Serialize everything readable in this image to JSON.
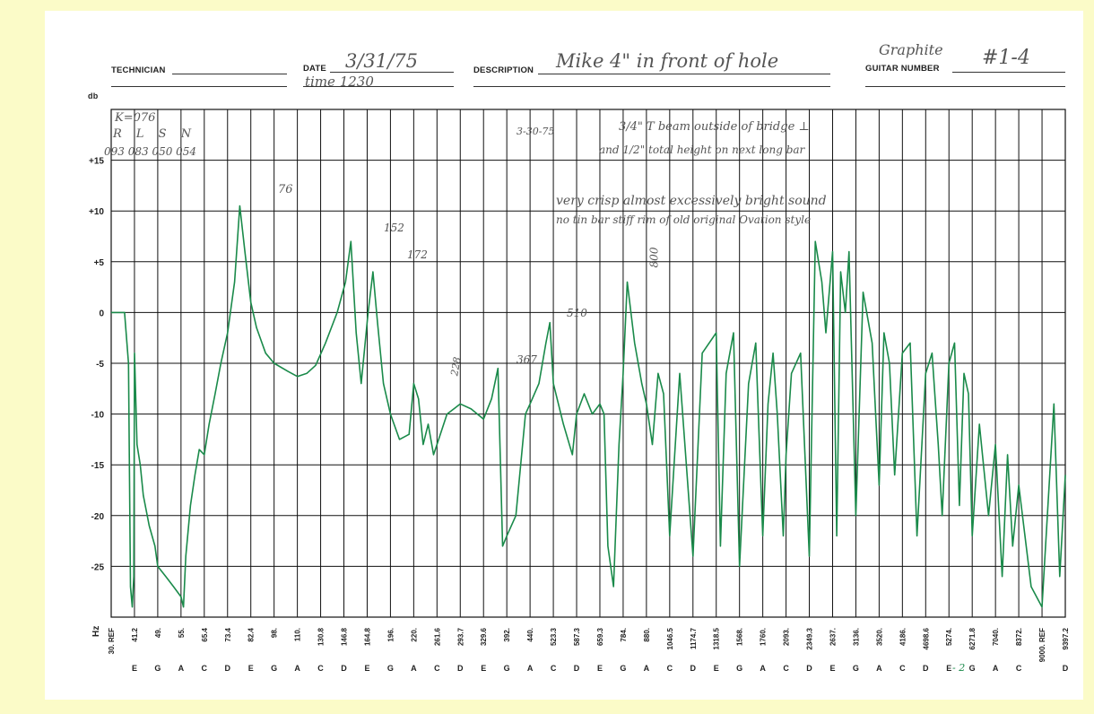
{
  "header": {
    "technician_label": "TECHNICIAN",
    "date_label": "DATE",
    "date_value": "3/31/75",
    "time_value": "time 1230",
    "description_label": "DESCRIPTION",
    "description_value": "Mike 4\" in front of hole",
    "guitar_number_label": "GUITAR NUMBER",
    "guitar_note": "Graphite",
    "guitar_number_value": "#1-4"
  },
  "notes": {
    "k_line": "K=076",
    "rlsn_headers": "R   L   S   N",
    "rlsn_values": "093  083  050  054",
    "date2": "3-30-75",
    "note1": "3/4\" T beam outside of bridge  ⊥",
    "note2": "and 1/2\" total height on next long bar",
    "note3": "very crisp almost excessively bright sound",
    "note4": "no tin bar     stiff rim of old original Ovation style",
    "peak_76": "76",
    "peak_152": "152",
    "peak_172": "172",
    "peak_228": "228",
    "peak_367": "367",
    "peak_510": "510",
    "peak_800": "800",
    "bottom_mark": "- 2"
  },
  "colors": {
    "trace": "#1a8a4a",
    "trace_dark": "#0e5e2e",
    "grid": "#111111",
    "paper": "#fbfbc8"
  },
  "chart_data": {
    "type": "line",
    "title": "",
    "xlabel": "Hz",
    "ylabel": "db",
    "ylim": [
      -30,
      20
    ],
    "y_ticks": [
      {
        "v": 15,
        "label": "+15"
      },
      {
        "v": 10,
        "label": "+10"
      },
      {
        "v": 5,
        "label": "+5"
      },
      {
        "v": 0,
        "label": "0"
      },
      {
        "v": -5,
        "label": "-5"
      },
      {
        "v": -10,
        "label": "-10"
      },
      {
        "v": -15,
        "label": "-15"
      },
      {
        "v": -20,
        "label": "-20"
      },
      {
        "v": -25,
        "label": "-25"
      }
    ],
    "x_ticks": [
      {
        "freq": "30. REF",
        "note": ""
      },
      {
        "freq": "41.2",
        "note": "E"
      },
      {
        "freq": "49.",
        "note": "G"
      },
      {
        "freq": "55.",
        "note": "A"
      },
      {
        "freq": "65.4",
        "note": "C"
      },
      {
        "freq": "73.4",
        "note": "D"
      },
      {
        "freq": "82.4",
        "note": "E"
      },
      {
        "freq": "98.",
        "note": "G"
      },
      {
        "freq": "110.",
        "note": "A"
      },
      {
        "freq": "130.8",
        "note": "C"
      },
      {
        "freq": "146.8",
        "note": "D"
      },
      {
        "freq": "164.8",
        "note": "E"
      },
      {
        "freq": "196.",
        "note": "G"
      },
      {
        "freq": "220.",
        "note": "A"
      },
      {
        "freq": "261.6",
        "note": "C"
      },
      {
        "freq": "293.7",
        "note": "D"
      },
      {
        "freq": "329.6",
        "note": "E"
      },
      {
        "freq": "392.",
        "note": "G"
      },
      {
        "freq": "440.",
        "note": "A"
      },
      {
        "freq": "523.3",
        "note": "C"
      },
      {
        "freq": "587.3",
        "note": "D"
      },
      {
        "freq": "659.3",
        "note": "E"
      },
      {
        "freq": "784.",
        "note": "G"
      },
      {
        "freq": "880.",
        "note": "A"
      },
      {
        "freq": "1046.5",
        "note": "C"
      },
      {
        "freq": "1174.7",
        "note": "D"
      },
      {
        "freq": "1318.5",
        "note": "E"
      },
      {
        "freq": "1568.",
        "note": "G"
      },
      {
        "freq": "1760.",
        "note": "A"
      },
      {
        "freq": "2093.",
        "note": "C"
      },
      {
        "freq": "2349.3",
        "note": "D"
      },
      {
        "freq": "2637.",
        "note": "E"
      },
      {
        "freq": "3136.",
        "note": "G"
      },
      {
        "freq": "3520.",
        "note": "A"
      },
      {
        "freq": "4186.",
        "note": "C"
      },
      {
        "freq": "4698.6",
        "note": "D"
      },
      {
        "freq": "5274.",
        "note": "E"
      },
      {
        "freq": "6271.8",
        "note": "G"
      },
      {
        "freq": "7040.",
        "note": "A"
      },
      {
        "freq": "8372.",
        "note": "C"
      },
      {
        "freq": "9000. REF",
        "note": ""
      },
      {
        "freq": "9397.2",
        "note": "D"
      }
    ],
    "series": [
      {
        "points": [
          [
            30,
            0
          ],
          [
            36,
            0
          ],
          [
            38,
            -5
          ],
          [
            39,
            -27
          ],
          [
            40,
            -29
          ],
          [
            40.8,
            -26
          ],
          [
            41.2,
            -4
          ],
          [
            42,
            -13
          ],
          [
            43,
            -15
          ],
          [
            44,
            -18
          ],
          [
            46,
            -21
          ],
          [
            48,
            -23
          ],
          [
            49,
            -25
          ],
          [
            51,
            -26
          ],
          [
            53,
            -27
          ],
          [
            55,
            -28
          ],
          [
            56,
            -29
          ],
          [
            57,
            -24
          ],
          [
            59,
            -19
          ],
          [
            61,
            -16
          ],
          [
            63,
            -13.5
          ],
          [
            65.4,
            -14
          ],
          [
            67,
            -11
          ],
          [
            69,
            -8
          ],
          [
            71,
            -5
          ],
          [
            73.4,
            -2
          ],
          [
            76,
            3
          ],
          [
            78,
            10.5
          ],
          [
            80,
            6
          ],
          [
            82.4,
            1
          ],
          [
            86,
            -1.5
          ],
          [
            92,
            -4
          ],
          [
            98,
            -5
          ],
          [
            105,
            -5.8
          ],
          [
            110,
            -6.3
          ],
          [
            118,
            -6
          ],
          [
            126,
            -5.2
          ],
          [
            134,
            -3
          ],
          [
            142,
            0
          ],
          [
            148,
            3
          ],
          [
            152,
            7
          ],
          [
            156,
            -2
          ],
          [
            160,
            -7
          ],
          [
            166,
            0
          ],
          [
            172,
            4
          ],
          [
            178,
            -1
          ],
          [
            186,
            -7
          ],
          [
            196,
            -10
          ],
          [
            205,
            -12.5
          ],
          [
            215,
            -12
          ],
          [
            220,
            -7
          ],
          [
            228,
            -8.5
          ],
          [
            236,
            -13
          ],
          [
            245,
            -11
          ],
          [
            255,
            -14
          ],
          [
            261.6,
            -13
          ],
          [
            275,
            -10
          ],
          [
            293.7,
            -9
          ],
          [
            310,
            -9.5
          ],
          [
            329.6,
            -10.5
          ],
          [
            350,
            -8.5
          ],
          [
            367,
            -5.5
          ],
          [
            380,
            -23
          ],
          [
            392,
            -22
          ],
          [
            410,
            -20
          ],
          [
            430,
            -10
          ],
          [
            440,
            -9
          ],
          [
            470,
            -7
          ],
          [
            495,
            -3
          ],
          [
            510,
            -1
          ],
          [
            523.3,
            -7
          ],
          [
            550,
            -11
          ],
          [
            575,
            -14
          ],
          [
            587.3,
            -10
          ],
          [
            610,
            -8
          ],
          [
            635,
            -10
          ],
          [
            659.3,
            -9
          ],
          [
            680,
            -10
          ],
          [
            700,
            -23
          ],
          [
            730,
            -27
          ],
          [
            760,
            -13
          ],
          [
            784,
            -6
          ],
          [
            800,
            3
          ],
          [
            830,
            -3
          ],
          [
            860,
            -7
          ],
          [
            880,
            -9
          ],
          [
            920,
            -13
          ],
          [
            960,
            -6
          ],
          [
            1000,
            -8
          ],
          [
            1046.5,
            -22
          ],
          [
            1100,
            -6
          ],
          [
            1174.7,
            -24
          ],
          [
            1230,
            -4
          ],
          [
            1318.5,
            -2
          ],
          [
            1360,
            -23
          ],
          [
            1420,
            -6
          ],
          [
            1500,
            -2
          ],
          [
            1568,
            -25
          ],
          [
            1640,
            -7
          ],
          [
            1700,
            -3
          ],
          [
            1760,
            -22
          ],
          [
            1830,
            -9
          ],
          [
            1900,
            -4
          ],
          [
            1960,
            -10
          ],
          [
            2050,
            -22
          ],
          [
            2093,
            -14
          ],
          [
            2150,
            -6
          ],
          [
            2250,
            -4
          ],
          [
            2349.3,
            -24
          ],
          [
            2420,
            7
          ],
          [
            2500,
            3
          ],
          [
            2550,
            -2
          ],
          [
            2637,
            6
          ],
          [
            2720,
            -22
          ],
          [
            2800,
            4
          ],
          [
            2900,
            0
          ],
          [
            2980,
            6
          ],
          [
            3136,
            -20
          ],
          [
            3250,
            2
          ],
          [
            3400,
            -3
          ],
          [
            3520,
            -17
          ],
          [
            3650,
            -2
          ],
          [
            3800,
            -5
          ],
          [
            3950,
            -16
          ],
          [
            4186,
            -4
          ],
          [
            4350,
            -3
          ],
          [
            4500,
            -22
          ],
          [
            4698.6,
            -6
          ],
          [
            4850,
            -4
          ],
          [
            5000,
            -13
          ],
          [
            5100,
            -20
          ],
          [
            5274,
            -5
          ],
          [
            5500,
            -3
          ],
          [
            5700,
            -19
          ],
          [
            5900,
            -6
          ],
          [
            6100,
            -8
          ],
          [
            6271.8,
            -22
          ],
          [
            6500,
            -11
          ],
          [
            6800,
            -20
          ],
          [
            7040,
            -13
          ],
          [
            7400,
            -26
          ],
          [
            7700,
            -14
          ],
          [
            8000,
            -23
          ],
          [
            8372,
            -17
          ],
          [
            8700,
            -27
          ],
          [
            9000,
            -29
          ],
          [
            9200,
            -9
          ],
          [
            9300,
            -26
          ],
          [
            9397.2,
            -16
          ]
        ]
      }
    ]
  }
}
